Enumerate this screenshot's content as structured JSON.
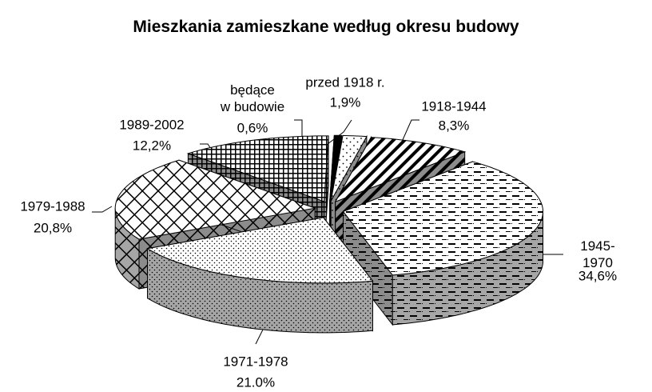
{
  "chart_data": {
    "type": "pie",
    "title": "Mieszkania zamieszkane według okresu budowy",
    "categories": [
      "przed 1918 r.",
      "1918-1944",
      "1945-1970",
      "1971-1978",
      "1979-1988",
      "1989-2002",
      "będące\nw budowie"
    ],
    "values": [
      1.9,
      8.3,
      34.6,
      21.0,
      20.8,
      12.2,
      0.6
    ],
    "value_labels": [
      "1,9%",
      "8,3%",
      "34,6%",
      "21.0%",
      "20,8%",
      "12,2%",
      "0,6%"
    ]
  }
}
